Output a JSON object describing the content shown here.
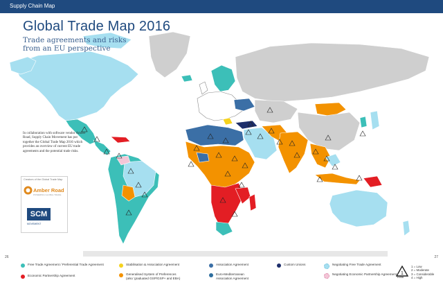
{
  "header": {
    "section_label": "Supply Chain Map"
  },
  "title": "Global Trade Map 2016",
  "subtitle_line1": "Trade agreements and risks",
  "subtitle_line2": "from an EU perspective",
  "intro_text": "In collaboration with software vendor Amber Road, Supply Chain Movement has put together the Global Trade Map 2016 which provides an overview of current EU trade agreements and the potential trade risks.",
  "creators": {
    "label": "Creators of the Global Trade Map",
    "amber_name": "Amber Road",
    "amber_tagline": "POWERING GLOBAL TRADE",
    "scm_name": "SCM",
    "scm_tagline": "MOVEMENT"
  },
  "pages": {
    "left": "26",
    "right": "27"
  },
  "colors": {
    "fta": "#3cbfb8",
    "epa": "#e31e24",
    "stabilisation": "#f5d21e",
    "gsp": "#f39200",
    "association": "#3b6fa6",
    "euro_med": "#2e6e9e",
    "customs": "#1d2e6b",
    "negotiating_fta": "#a6dff0",
    "negotiating_epa": "#f3c6d7",
    "eu": "#ffffff",
    "other_land": "#cfcfcf",
    "light_blue_land": "#a6dff0"
  },
  "legend": [
    {
      "key": "fta",
      "text": "Free Trade Agreement / Preferential Trade Agreement"
    },
    {
      "key": "epa",
      "text": "Economic Partnership Agreement"
    },
    {
      "key": "stabilisation",
      "text": "Stabilisation & Association Agreement"
    },
    {
      "key": "gsp",
      "text": "Generalised System of Preferences\n(also 'graduated GSP/GSP+ and EBA)"
    },
    {
      "key": "association",
      "text": "Association Agreement"
    },
    {
      "key": "euro_med",
      "text": "Euro-Mediterranean\nAssociation Agreement"
    },
    {
      "key": "customs",
      "text": "Custom Unions"
    },
    {
      "key": "negotiating_fta",
      "text": "Negotiating Free Trade Agreement"
    },
    {
      "key": "negotiating_epa",
      "text": "Negotiating Economic Partnership Agreement"
    }
  ],
  "risk": {
    "label": "Risk",
    "levels": [
      "1 = Low",
      "2 = Moderate",
      "3 = Considerable",
      "4 = High"
    ]
  }
}
